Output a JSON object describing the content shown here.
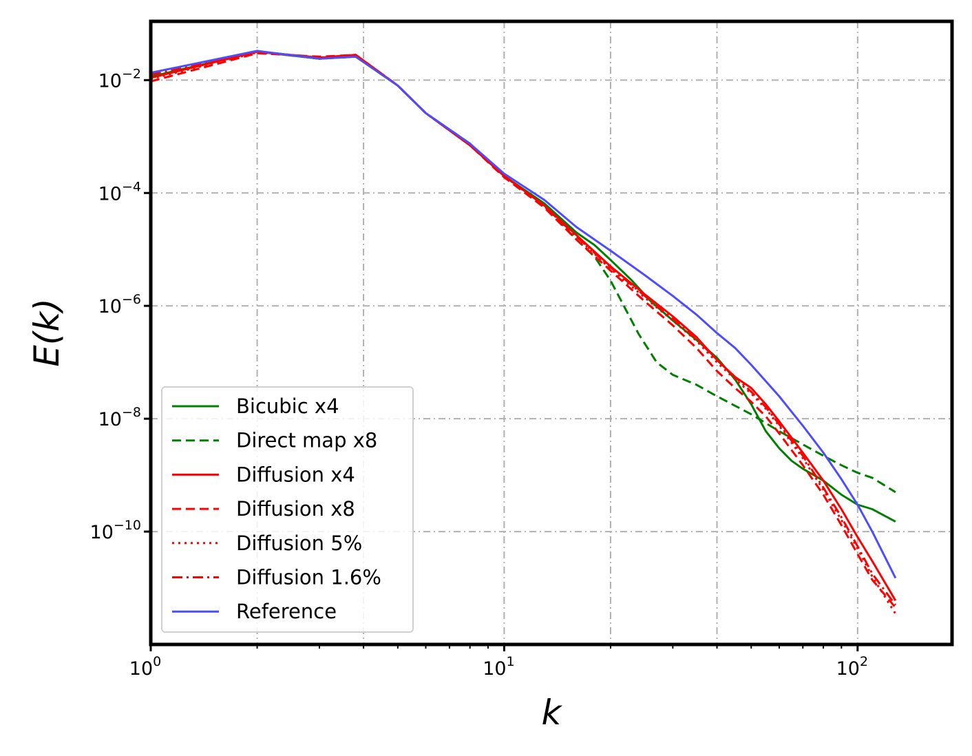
{
  "chart_data": {
    "type": "line",
    "title": "",
    "xlabel": "k",
    "ylabel": "E(k)",
    "xscale": "log",
    "yscale": "log",
    "xlim": [
      1,
      185
    ],
    "ylim": [
      1e-12,
      0.11
    ],
    "grid": true,
    "legend_position": "lower-left",
    "x_ticks": [
      {
        "value": 1,
        "base": "10",
        "exp": "0"
      },
      {
        "value": 10,
        "base": "10",
        "exp": "1"
      },
      {
        "value": 100,
        "base": "10",
        "exp": "2"
      }
    ],
    "y_ticks": [
      {
        "value": 0.01,
        "base": "10",
        "exp": "−2"
      },
      {
        "value": 0.0001,
        "base": "10",
        "exp": "−4"
      },
      {
        "value": 1e-06,
        "base": "10",
        "exp": "−6"
      },
      {
        "value": 1e-08,
        "base": "10",
        "exp": "−8"
      },
      {
        "value": 1e-10,
        "base": "10",
        "exp": "−10"
      }
    ],
    "series": [
      {
        "name": "Bicubic x4",
        "color": "#008000",
        "style": "solid",
        "x": [
          1,
          2,
          3,
          3.8,
          5,
          6,
          8,
          10,
          13,
          16,
          18,
          20,
          23,
          26,
          30,
          35,
          40,
          45,
          50,
          55,
          60,
          65,
          70,
          80,
          90,
          100,
          110,
          128
        ],
        "y": [
          0.0115,
          0.032,
          0.024,
          0.026,
          0.008,
          0.0026,
          0.00075,
          0.0002,
          6.5e-05,
          2e-05,
          1.2e-05,
          6.5e-06,
          2.8e-06,
          1.2e-06,
          5.5e-07,
          2.5e-07,
          1.2e-07,
          5e-08,
          1.8e-08,
          6e-09,
          3e-09,
          1.8e-09,
          1.3e-09,
          8e-10,
          4.5e-10,
          3e-10,
          2.5e-10,
          1.5e-10
        ]
      },
      {
        "name": "Direct map x8",
        "color": "#008000",
        "style": "dashed",
        "x": [
          1,
          2,
          3,
          3.8,
          5,
          6,
          8,
          10,
          13,
          16,
          18,
          20,
          22,
          24,
          27,
          30,
          35,
          40,
          50,
          60,
          70,
          80,
          90,
          100,
          110,
          128
        ],
        "y": [
          0.0115,
          0.032,
          0.024,
          0.026,
          0.008,
          0.0026,
          0.00075,
          0.0002,
          6e-05,
          1.5e-05,
          7.5e-06,
          2.8e-06,
          9e-07,
          3.2e-07,
          1e-07,
          6e-08,
          4e-08,
          2.5e-08,
          1.2e-08,
          6e-09,
          3.5e-09,
          2.2e-09,
          1.5e-09,
          1.1e-09,
          9e-10,
          5e-10
        ]
      },
      {
        "name": "Diffusion x4",
        "color": "#ff0000",
        "style": "solid",
        "x": [
          1,
          2,
          3,
          3.8,
          5,
          6,
          8,
          10,
          13,
          16,
          20,
          25,
          30,
          35,
          40,
          45,
          50,
          55,
          60,
          70,
          80,
          90,
          100,
          110,
          128
        ],
        "y": [
          0.011,
          0.032,
          0.025,
          0.028,
          0.008,
          0.0026,
          0.0007,
          0.0002,
          6e-05,
          1.8e-05,
          5e-06,
          1.6e-06,
          6.5e-07,
          2.8e-07,
          1.1e-07,
          5.5e-08,
          3.5e-08,
          1.8e-08,
          9e-09,
          2.5e-09,
          8e-10,
          2.5e-10,
          8e-11,
          3e-11,
          6e-12
        ]
      },
      {
        "name": "Diffusion x8",
        "color": "#ff0000",
        "style": "dashed",
        "x": [
          1,
          2,
          3,
          3.8,
          5,
          6,
          8,
          10,
          13,
          16,
          20,
          25,
          30,
          35,
          40,
          45,
          50,
          55,
          60,
          70,
          80,
          90,
          100,
          110,
          128
        ],
        "y": [
          0.0095,
          0.03,
          0.026,
          0.028,
          0.008,
          0.0026,
          0.0007,
          0.00019,
          5.5e-05,
          1.5e-05,
          4.2e-06,
          1.2e-06,
          4.5e-07,
          1.8e-07,
          7e-08,
          3.5e-08,
          2e-08,
          1.1e-08,
          5.5e-09,
          1.5e-09,
          4.5e-10,
          1.3e-10,
          4e-11,
          1.4e-11,
          4.5e-12
        ]
      },
      {
        "name": "Diffusion 5%",
        "color": "#ff0000",
        "style": "dotted",
        "x": [
          1,
          2,
          3,
          3.8,
          5,
          6,
          8,
          10,
          13,
          16,
          20,
          25,
          30,
          35,
          40,
          45,
          50,
          55,
          60,
          70,
          80,
          90,
          100,
          110,
          128
        ],
        "y": [
          0.0105,
          0.031,
          0.025,
          0.028,
          0.008,
          0.0026,
          0.0007,
          0.0002,
          5.8e-05,
          1.7e-05,
          4.5e-06,
          1.4e-06,
          5.5e-07,
          2.4e-07,
          1e-07,
          5e-08,
          2.8e-08,
          1.5e-08,
          7.5e-09,
          2e-09,
          5.5e-10,
          1.6e-10,
          5e-11,
          1.6e-11,
          3.5e-12
        ]
      },
      {
        "name": "Diffusion 1.6%",
        "color": "#ff0000",
        "style": "dashdot",
        "x": [
          1,
          2,
          3,
          3.8,
          5,
          6,
          8,
          10,
          13,
          16,
          20,
          25,
          30,
          35,
          40,
          45,
          50,
          55,
          60,
          70,
          80,
          90,
          100,
          110,
          128
        ],
        "y": [
          0.0125,
          0.032,
          0.025,
          0.028,
          0.008,
          0.0026,
          0.0007,
          0.0002,
          6e-05,
          1.7e-05,
          4.8e-06,
          1.5e-06,
          6e-07,
          2.6e-07,
          1.1e-07,
          5.5e-08,
          3e-08,
          1.6e-08,
          8e-09,
          2.2e-09,
          6e-10,
          1.8e-10,
          5.5e-11,
          1.8e-11,
          5e-12
        ]
      },
      {
        "name": "Reference",
        "color": "#4d4dff",
        "style": "solid",
        "x": [
          1,
          2,
          3,
          3.8,
          5,
          6,
          8,
          10,
          13,
          16,
          20,
          25,
          30,
          35,
          40,
          45,
          50,
          60,
          70,
          80,
          90,
          100,
          110,
          128
        ],
        "y": [
          0.0135,
          0.033,
          0.024,
          0.026,
          0.008,
          0.0026,
          0.00075,
          0.00022,
          7.5e-05,
          2.5e-05,
          9.5e-06,
          3.5e-06,
          1.5e-06,
          7e-07,
          3.3e-07,
          1.8e-07,
          9e-08,
          2.5e-08,
          7.5e-09,
          2.5e-09,
          8.5e-10,
          3e-10,
          1e-10,
          1.5e-11
        ]
      }
    ]
  }
}
